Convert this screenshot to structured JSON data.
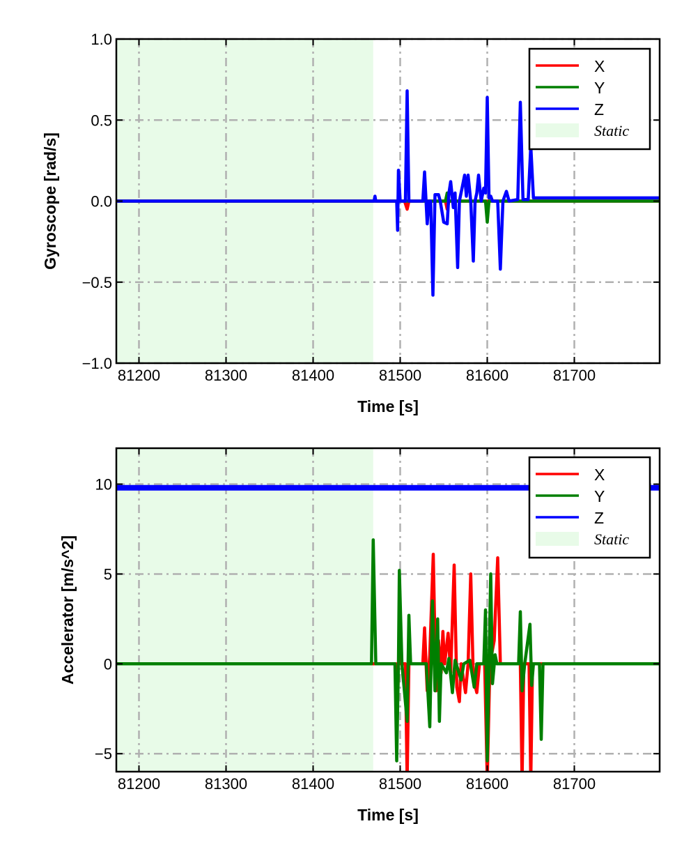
{
  "chart_data": [
    {
      "type": "line",
      "title": "",
      "xlabel": "Time [s]",
      "ylabel": "Gyroscope [rad/s]",
      "xlim": [
        81174,
        81798
      ],
      "ylim": [
        -1.0,
        1.0
      ],
      "xticks": [
        81200,
        81300,
        81400,
        81500,
        81600,
        81700
      ],
      "xtick_labels": [
        "81200",
        "81300",
        "81400",
        "81500",
        "81600",
        "81700"
      ],
      "yticks": [
        1.0,
        0.5,
        0.0,
        -0.5,
        -1.0
      ],
      "ytick_labels": [
        "1.0",
        "0.5",
        "0.0",
        "−0.5",
        "−1.0"
      ],
      "grid": true,
      "legend_position": "top-right",
      "static_region": {
        "label": "Static",
        "x": [
          81174,
          81469
        ],
        "color": "#e8fbe8"
      },
      "series": [
        {
          "name": "X",
          "color": "#ff0000",
          "points": [
            [
              81174,
              0
            ],
            [
              81505,
              0
            ],
            [
              81508,
              -0.05
            ],
            [
              81510,
              0
            ],
            [
              81552,
              0
            ],
            [
              81554,
              -0.05
            ],
            [
              81556,
              0
            ],
            [
              81798,
              0
            ]
          ]
        },
        {
          "name": "Y",
          "color": "#007f00",
          "points": [
            [
              81174,
              0
            ],
            [
              81552,
              0
            ],
            [
              81554,
              0.05
            ],
            [
              81556,
              0
            ],
            [
              81598,
              0
            ],
            [
              81600,
              -0.13
            ],
            [
              81602,
              0
            ],
            [
              81798,
              0
            ]
          ]
        },
        {
          "name": "Z",
          "color": "#0000ff",
          "points": [
            [
              81174,
              0
            ],
            [
              81470,
              0
            ],
            [
              81471,
              0.03
            ],
            [
              81472,
              0
            ],
            [
              81496,
              0
            ],
            [
              81497,
              -0.18
            ],
            [
              81498,
              0.19
            ],
            [
              81500,
              0
            ],
            [
              81506,
              0
            ],
            [
              81508,
              0.68
            ],
            [
              81510,
              0
            ],
            [
              81526,
              0
            ],
            [
              81528,
              0.18
            ],
            [
              81531,
              -0.14
            ],
            [
              81533,
              0
            ],
            [
              81535,
              0
            ],
            [
              81537.6,
              -0.58
            ],
            [
              81540,
              0.04
            ],
            [
              81544,
              0.04
            ],
            [
              81546,
              0
            ],
            [
              81550,
              -0.13
            ],
            [
              81554,
              -0.14
            ],
            [
              81556,
              0.05
            ],
            [
              81558,
              0.12
            ],
            [
              81561,
              -0.04
            ],
            [
              81563,
              0.05
            ],
            [
              81566,
              -0.41
            ],
            [
              81568,
              0
            ],
            [
              81571,
              0.08
            ],
            [
              81574,
              0.16
            ],
            [
              81576,
              0.03
            ],
            [
              81578,
              0.16
            ],
            [
              81581,
              0
            ],
            [
              81584,
              -0.37
            ],
            [
              81586,
              0
            ],
            [
              81588,
              0.05
            ],
            [
              81590,
              0.16
            ],
            [
              81593,
              0
            ],
            [
              81596,
              0.08
            ],
            [
              81598,
              0.05
            ],
            [
              81600,
              0.64
            ],
            [
              81602,
              0.02
            ],
            [
              81604,
              0.03
            ],
            [
              81606,
              0
            ],
            [
              81612,
              0
            ],
            [
              81615,
              -0.42
            ],
            [
              81618,
              0
            ],
            [
              81622,
              0.06
            ],
            [
              81625,
              0
            ],
            [
              81635,
              0.01
            ],
            [
              81638,
              0.61
            ],
            [
              81641,
              0.01
            ],
            [
              81647,
              0.01
            ],
            [
              81650,
              0.34
            ],
            [
              81653,
              0.02
            ],
            [
              81660,
              0.02
            ],
            [
              81798,
              0.02
            ]
          ]
        }
      ]
    },
    {
      "type": "line",
      "title": "",
      "xlabel": "Time [s]",
      "ylabel": "Accelerator [m/s^2]",
      "xlim": [
        81174,
        81798
      ],
      "ylim": [
        -6,
        12
      ],
      "xticks": [
        81200,
        81300,
        81400,
        81500,
        81600,
        81700
      ],
      "xtick_labels": [
        "81200",
        "81300",
        "81400",
        "81500",
        "81600",
        "81700"
      ],
      "yticks": [
        10,
        5,
        0,
        -5
      ],
      "ytick_labels": [
        "10",
        "5",
        "0",
        "−5"
      ],
      "grid": true,
      "legend_position": "top-right",
      "static_region": {
        "label": "Static",
        "x": [
          81174,
          81469
        ],
        "color": "#e8fbe8"
      },
      "series": [
        {
          "name": "X",
          "color": "#ff0000",
          "points": [
            [
              81174,
              0
            ],
            [
              81495,
              0
            ],
            [
              81497,
              -2.0
            ],
            [
              81499,
              1.8
            ],
            [
              81501,
              0
            ],
            [
              81506,
              0
            ],
            [
              81508,
              -6.5
            ],
            [
              81510,
              0
            ],
            [
              81526,
              0
            ],
            [
              81528,
              2.0
            ],
            [
              81531,
              -1.5
            ],
            [
              81534,
              0.5
            ],
            [
              81538,
              6.1
            ],
            [
              81541,
              -1.5
            ],
            [
              81544,
              1.3
            ],
            [
              81547,
              -0.5
            ],
            [
              81549,
              1.8
            ],
            [
              81551,
              0
            ],
            [
              81555,
              1.7
            ],
            [
              81558,
              -0.5
            ],
            [
              81562,
              5.5
            ],
            [
              81565,
              -1.3
            ],
            [
              81568,
              -2.1
            ],
            [
              81570,
              0
            ],
            [
              81575,
              -1.6
            ],
            [
              81578,
              0
            ],
            [
              81581,
              5.0
            ],
            [
              81584,
              -0.8
            ],
            [
              81588,
              -1.6
            ],
            [
              81591,
              0
            ],
            [
              81597,
              0
            ],
            [
              81600,
              -6.5
            ],
            [
              81603,
              0
            ],
            [
              81608,
              1.3
            ],
            [
              81612,
              5.9
            ],
            [
              81615,
              0
            ],
            [
              81620,
              0
            ],
            [
              81625,
              0
            ],
            [
              81638,
              0
            ],
            [
              81640,
              -6.5
            ],
            [
              81642,
              0
            ],
            [
              81648,
              0
            ],
            [
              81650,
              -6.5
            ],
            [
              81652,
              0
            ],
            [
              81660,
              0
            ],
            [
              81798,
              0
            ]
          ]
        },
        {
          "name": "Y",
          "color": "#007f00",
          "points": [
            [
              81174,
              0
            ],
            [
              81467,
              0
            ],
            [
              81469,
              6.9
            ],
            [
              81472,
              0
            ],
            [
              81494,
              0
            ],
            [
              81496,
              -5.4
            ],
            [
              81498,
              0
            ],
            [
              81499,
              5.2
            ],
            [
              81502,
              0
            ],
            [
              81508,
              -3.2
            ],
            [
              81510,
              2.7
            ],
            [
              81512,
              0
            ],
            [
              81530,
              0
            ],
            [
              81534,
              -3.5
            ],
            [
              81537,
              3.5
            ],
            [
              81540,
              -1.5
            ],
            [
              81543,
              2.5
            ],
            [
              81545,
              -3.2
            ],
            [
              81547,
              0
            ],
            [
              81553,
              -0.5
            ],
            [
              81556,
              0.3
            ],
            [
              81560,
              -1.6
            ],
            [
              81563,
              0.2
            ],
            [
              81570,
              -0.9
            ],
            [
              81573,
              0
            ],
            [
              81580,
              0.2
            ],
            [
              81585,
              -1.3
            ],
            [
              81588,
              0
            ],
            [
              81596,
              0
            ],
            [
              81598,
              3.0
            ],
            [
              81600,
              -5.4
            ],
            [
              81602,
              0
            ],
            [
              81604,
              5.0
            ],
            [
              81606,
              -1.1
            ],
            [
              81609,
              0.5
            ],
            [
              81611,
              0
            ],
            [
              81636,
              0
            ],
            [
              81638,
              2.9
            ],
            [
              81640,
              -1.5
            ],
            [
              81643,
              0
            ],
            [
              81649,
              2.2
            ],
            [
              81651,
              -1.2
            ],
            [
              81653,
              0
            ],
            [
              81660,
              0
            ],
            [
              81662,
              -4.2
            ],
            [
              81664,
              0
            ],
            [
              81798,
              0
            ]
          ]
        },
        {
          "name": "Z",
          "color": "#0000ff",
          "points": [
            [
              81174,
              9.8
            ],
            [
              81798,
              9.8
            ]
          ]
        }
      ]
    }
  ]
}
